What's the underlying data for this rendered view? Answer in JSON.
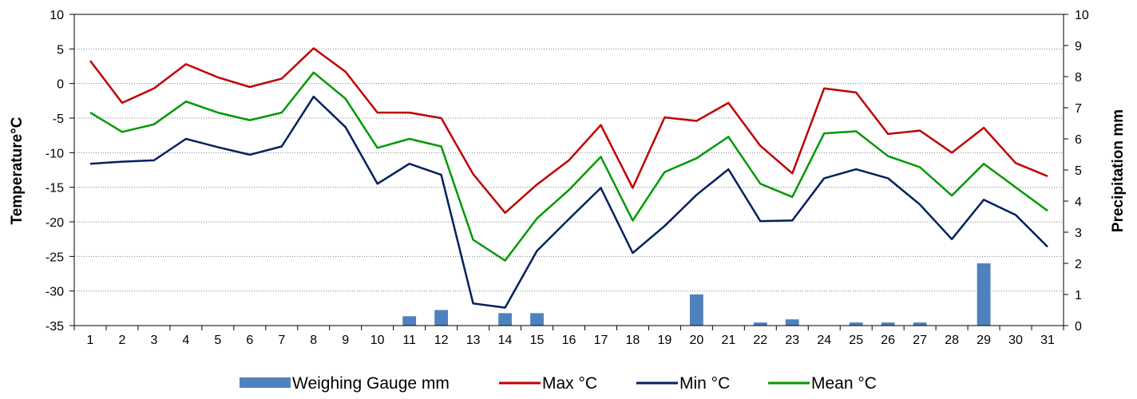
{
  "chart_data": {
    "type": "bar+line",
    "x": [
      "1",
      "2",
      "3",
      "4",
      "5",
      "6",
      "7",
      "8",
      "9",
      "10",
      "11",
      "12",
      "13",
      "14",
      "15",
      "16",
      "17",
      "18",
      "19",
      "20",
      "21",
      "22",
      "23",
      "24",
      "25",
      "26",
      "27",
      "28",
      "29",
      "30",
      "31"
    ],
    "ylabel_left": "Temperature°C",
    "ylabel_right": "Precipitation mm",
    "ylim_left": [
      -35,
      10
    ],
    "ylim_right": [
      0,
      10
    ],
    "yticks_left": [
      "10",
      "5",
      "0",
      "-5",
      "-10",
      "-15",
      "-20",
      "-25",
      "-30",
      "-35"
    ],
    "yticks_right": [
      "10",
      "9",
      "8",
      "7",
      "6",
      "5",
      "4",
      "3",
      "2",
      "1",
      "0"
    ],
    "grid": "horizontal dotted",
    "legend_position": "bottom",
    "bars": {
      "name": "Weighing Gauge mm",
      "axis": "right",
      "color": "#4f81bd",
      "values": [
        0,
        0,
        0,
        0,
        0,
        0,
        0,
        0,
        0,
        0,
        0.3,
        0.5,
        0,
        0.4,
        0.4,
        0,
        0,
        0,
        0,
        1.0,
        0,
        0.1,
        0.2,
        0,
        0.1,
        0.1,
        0.1,
        0,
        2.0,
        0,
        0
      ]
    },
    "series": [
      {
        "name": "Max °C",
        "axis": "left",
        "color": "#c00000",
        "values": [
          3.3,
          -2.8,
          -0.7,
          2.8,
          0.9,
          -0.5,
          0.7,
          5.1,
          1.7,
          -4.2,
          -4.2,
          -5.0,
          -13.1,
          -18.7,
          -14.6,
          -11.1,
          -6.0,
          -15.1,
          -4.9,
          -5.4,
          -2.8,
          -9.0,
          -13.0,
          -0.7,
          -1.3,
          -7.3,
          -6.8,
          -10.0,
          -6.4,
          -11.5,
          -13.4
        ]
      },
      {
        "name": "Min °C",
        "axis": "left",
        "color": "#002060",
        "values": [
          -11.6,
          -11.3,
          -11.1,
          -8.0,
          -9.2,
          -10.3,
          -9.1,
          -1.9,
          -6.3,
          -14.5,
          -11.6,
          -13.2,
          -31.8,
          -32.4,
          -24.2,
          -19.6,
          -15.1,
          -24.5,
          -20.6,
          -16.1,
          -12.4,
          -19.9,
          -19.8,
          -13.7,
          -12.4,
          -13.7,
          -17.5,
          -22.5,
          -16.8,
          -19.0,
          -23.6
        ]
      },
      {
        "name": "Mean °C",
        "axis": "left",
        "color": "#009900",
        "values": [
          -4.2,
          -7.0,
          -5.9,
          -2.6,
          -4.2,
          -5.3,
          -4.2,
          1.6,
          -2.2,
          -9.3,
          -8.0,
          -9.1,
          -22.6,
          -25.6,
          -19.5,
          -15.4,
          -10.6,
          -19.8,
          -12.8,
          -10.8,
          -7.7,
          -14.5,
          -16.4,
          -7.2,
          -6.9,
          -10.5,
          -12.1,
          -16.2,
          -11.6,
          -15.0,
          -18.4
        ]
      }
    ]
  }
}
